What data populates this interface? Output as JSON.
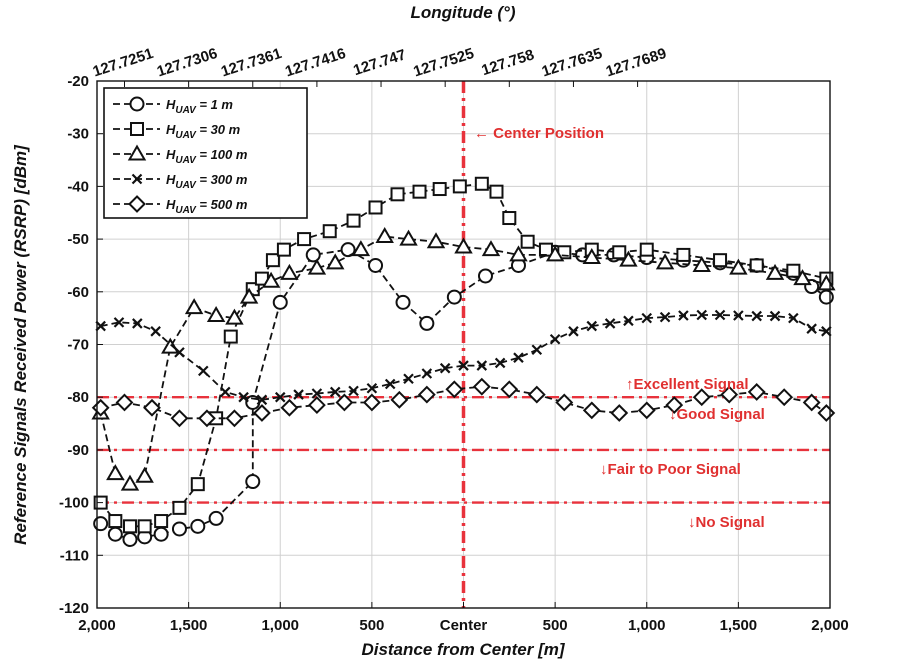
{
  "chart_data": {
    "type": "line",
    "title": "",
    "top_axis_title": "Longitude (°)",
    "xlabel": "Distance from Center [m]",
    "ylabel": "Reference Signals Received Power (RSRP) [dBm]",
    "xlim": [
      -2000,
      2000
    ],
    "ylim": [
      -120,
      -20
    ],
    "x_ticks": [
      -2000,
      -1500,
      -1000,
      -500,
      0,
      500,
      1000,
      1500,
      2000
    ],
    "x_tick_labels": [
      "2,000",
      "1,500",
      "1,000",
      "500",
      "Center",
      "500",
      "1,000",
      "1,500",
      "2,000"
    ],
    "y_ticks": [
      -120,
      -110,
      -100,
      -90,
      -80,
      -70,
      -60,
      -50,
      -40,
      -30,
      -20
    ],
    "y_tick_labels": [
      "-120",
      "-110",
      "-100",
      "-90",
      "-80",
      "-70",
      "-60",
      "-50",
      "-40",
      "-30",
      "-20"
    ],
    "top_ticks": [
      -1850,
      -1500,
      -1150,
      -800,
      -450,
      -100,
      250,
      600,
      950
    ],
    "top_tick_labels": [
      "127.7251",
      "127.7306",
      "127.7361",
      "127.7416",
      "127.747",
      "127.7525",
      "127.758",
      "127.7635",
      "127.7689"
    ],
    "grid": true,
    "center_line": {
      "x": 0,
      "label": "← Center Position",
      "color": "#e8323c"
    },
    "reference_lines": [
      {
        "y": -80,
        "label_above": "↑Excellent Signal",
        "label_below": "↓Good Signal"
      },
      {
        "y": -90,
        "label_below": "↓Fair to Poor Signal"
      },
      {
        "y": -100,
        "label_below": "↓No Signal"
      }
    ],
    "reference_color": "#e8323c",
    "legend_position": "top-left",
    "series": [
      {
        "name": "H_UAV = 1 m",
        "label_prefix": "H",
        "label_sub": "UAV",
        "label_suffix": " = 1 m",
        "marker": "circle",
        "x": [
          -1980,
          -1900,
          -1820,
          -1740,
          -1650,
          -1550,
          -1450,
          -1350,
          -1150,
          -1150,
          -1000,
          -820,
          -630,
          -480,
          -330,
          -200,
          -50,
          120,
          300,
          500,
          650,
          820,
          1000,
          1200,
          1400,
          1600,
          1800,
          1900,
          1980
        ],
        "y": [
          -104,
          -106,
          -107,
          -106.5,
          -106,
          -105,
          -104.5,
          -103,
          -96,
          -81,
          -62,
          -53,
          -52,
          -55,
          -62,
          -66,
          -61,
          -57,
          -55,
          -52.5,
          -53,
          -53,
          -53.5,
          -54,
          -54.5,
          -55,
          -56.5,
          -59,
          -61
        ]
      },
      {
        "name": "H_UAV = 30 m",
        "label_prefix": "H",
        "label_sub": "UAV",
        "label_suffix": " = 30 m",
        "marker": "square",
        "x": [
          -1980,
          -1900,
          -1820,
          -1740,
          -1650,
          -1550,
          -1450,
          -1350,
          -1270,
          -1150,
          -1100,
          -1040,
          -980,
          -870,
          -730,
          -600,
          -480,
          -360,
          -240,
          -130,
          -20,
          100,
          180,
          250,
          350,
          450,
          550,
          700,
          850,
          1000,
          1200,
          1400,
          1600,
          1800,
          1980
        ],
        "y": [
          -100,
          -103.5,
          -104.5,
          -104.5,
          -103.5,
          -101,
          -96.5,
          -84,
          -68.5,
          -59.5,
          -57.5,
          -54,
          -52,
          -50,
          -48.5,
          -46.5,
          -44,
          -41.5,
          -41,
          -40.5,
          -40,
          -39.5,
          -41,
          -46,
          -50.5,
          -52,
          -52.5,
          -52,
          -52.5,
          -52,
          -53,
          -54,
          -55,
          -56,
          -57.5
        ]
      },
      {
        "name": "H_UAV = 100 m",
        "label_prefix": "H",
        "label_sub": "UAV",
        "label_suffix": " = 100 m",
        "marker": "triangle",
        "x": [
          -1980,
          -1900,
          -1820,
          -1740,
          -1600,
          -1470,
          -1350,
          -1250,
          -1170,
          -1050,
          -950,
          -800,
          -700,
          -560,
          -430,
          -300,
          -150,
          0,
          150,
          300,
          500,
          700,
          900,
          1100,
          1300,
          1500,
          1700,
          1850,
          1980
        ],
        "y": [
          -83,
          -94.5,
          -96.5,
          -95,
          -70.5,
          -63,
          -64.5,
          -65,
          -61,
          -58,
          -56.5,
          -55.5,
          -54.5,
          -52,
          -49.5,
          -50,
          -50.5,
          -51.5,
          -52,
          -53,
          -53,
          -53.5,
          -54,
          -54.5,
          -55,
          -55.5,
          -56.5,
          -57.5,
          -58.5
        ]
      },
      {
        "name": "H_UAV = 300 m",
        "label_prefix": "H",
        "label_sub": "UAV",
        "label_suffix": " = 300 m",
        "marker": "x",
        "x": [
          -1980,
          -1880,
          -1780,
          -1680,
          -1550,
          -1420,
          -1300,
          -1200,
          -1100,
          -1000,
          -900,
          -800,
          -700,
          -600,
          -500,
          -400,
          -300,
          -200,
          -100,
          0,
          100,
          200,
          300,
          400,
          500,
          600,
          700,
          800,
          900,
          1000,
          1100,
          1200,
          1300,
          1400,
          1500,
          1600,
          1700,
          1800,
          1900,
          1980
        ],
        "y": [
          -66.5,
          -65.8,
          -66,
          -67.5,
          -71.5,
          -75,
          -79,
          -80,
          -80.5,
          -80,
          -79.5,
          -79.3,
          -79,
          -78.8,
          -78.3,
          -77.5,
          -76.5,
          -75.5,
          -74.5,
          -74,
          -74,
          -73.5,
          -72.5,
          -71,
          -69,
          -67.5,
          -66.5,
          -66,
          -65.5,
          -65,
          -64.8,
          -64.5,
          -64.4,
          -64.4,
          -64.5,
          -64.6,
          -64.6,
          -65,
          -67,
          -67.5
        ]
      },
      {
        "name": "H_UAV = 500 m",
        "label_prefix": "H",
        "label_sub": "UAV",
        "label_suffix": " = 500 m",
        "marker": "diamond",
        "x": [
          -1980,
          -1850,
          -1700,
          -1550,
          -1400,
          -1250,
          -1100,
          -950,
          -800,
          -650,
          -500,
          -350,
          -200,
          -50,
          100,
          250,
          400,
          550,
          700,
          850,
          1000,
          1150,
          1300,
          1450,
          1600,
          1750,
          1900,
          1980
        ],
        "y": [
          -82,
          -81,
          -82,
          -84,
          -84,
          -84,
          -83,
          -82,
          -81.5,
          -81,
          -81,
          -80.5,
          -79.5,
          -78.5,
          -78,
          -78.5,
          -79.5,
          -81,
          -82.5,
          -83,
          -82.5,
          -81.5,
          -80,
          -79.5,
          -79,
          -80,
          -81,
          -83
        ]
      }
    ]
  }
}
